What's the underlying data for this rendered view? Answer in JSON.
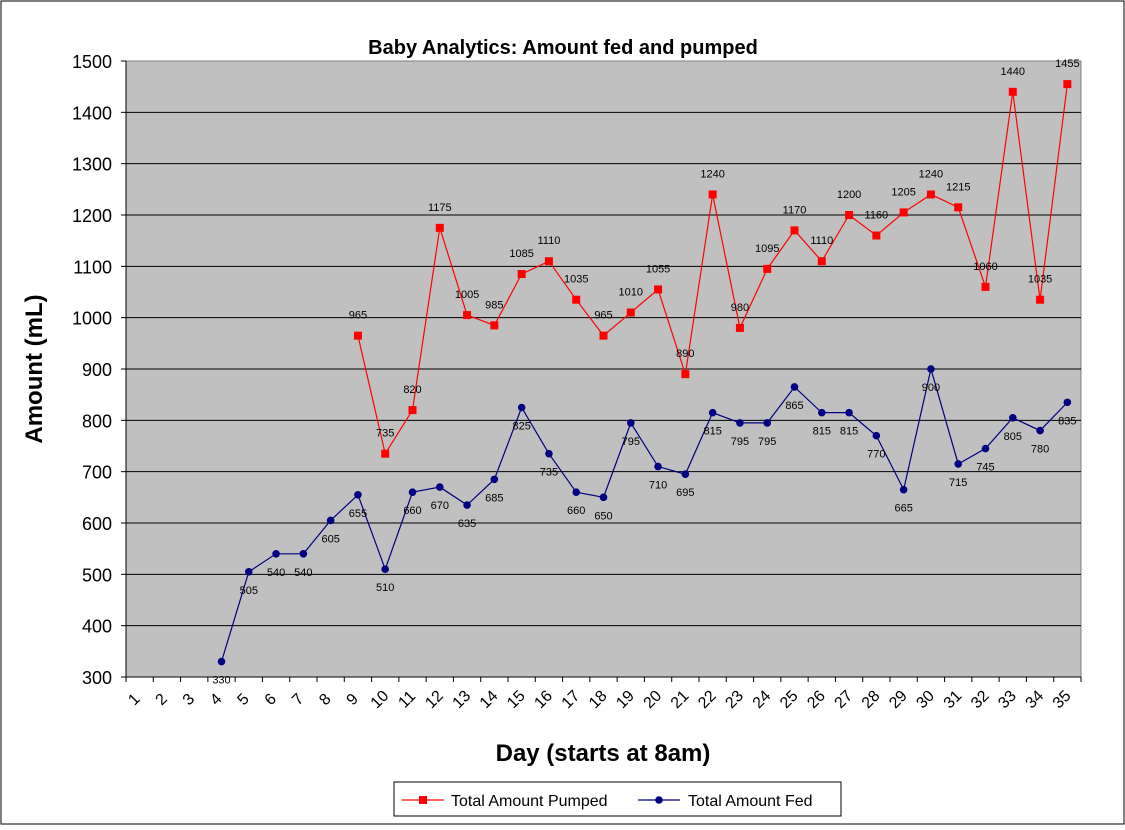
{
  "chart_data": {
    "type": "line",
    "title": "Baby Analytics: Amount fed and pumped",
    "xlabel": "Day (starts at 8am)",
    "ylabel": "Amount (mL)",
    "ylim": [
      300,
      1500
    ],
    "yticks": [
      300,
      400,
      500,
      600,
      700,
      800,
      900,
      1000,
      1100,
      1200,
      1300,
      1400,
      1500
    ],
    "categories": [
      "1",
      "2",
      "3",
      "4",
      "5",
      "6",
      "7",
      "8",
      "9",
      "10",
      "11",
      "12",
      "13",
      "14",
      "15",
      "16",
      "17",
      "18",
      "19",
      "20",
      "21",
      "22",
      "23",
      "24",
      "25",
      "26",
      "27",
      "28",
      "29",
      "30",
      "31",
      "32",
      "33",
      "34",
      "35"
    ],
    "grid": "horizontal",
    "legend_position": "bottom",
    "plot_background": "#c0c0c0",
    "series": [
      {
        "name": "Total Amount Pumped",
        "color": "#ff0000",
        "marker": "square",
        "values": [
          null,
          null,
          null,
          null,
          null,
          null,
          null,
          null,
          965,
          735,
          820,
          1175,
          1005,
          985,
          1085,
          1110,
          1035,
          965,
          1010,
          1055,
          890,
          1240,
          980,
          1095,
          1170,
          1110,
          1200,
          1160,
          1205,
          1240,
          1215,
          1060,
          1440,
          1035,
          1455
        ]
      },
      {
        "name": "Total Amount Fed",
        "color": "#000080",
        "marker": "circle",
        "values": [
          null,
          null,
          null,
          330,
          505,
          540,
          540,
          605,
          655,
          510,
          660,
          670,
          635,
          685,
          825,
          735,
          660,
          650,
          795,
          710,
          695,
          815,
          795,
          795,
          865,
          815,
          815,
          770,
          665,
          900,
          715,
          745,
          805,
          780,
          835
        ]
      }
    ]
  }
}
